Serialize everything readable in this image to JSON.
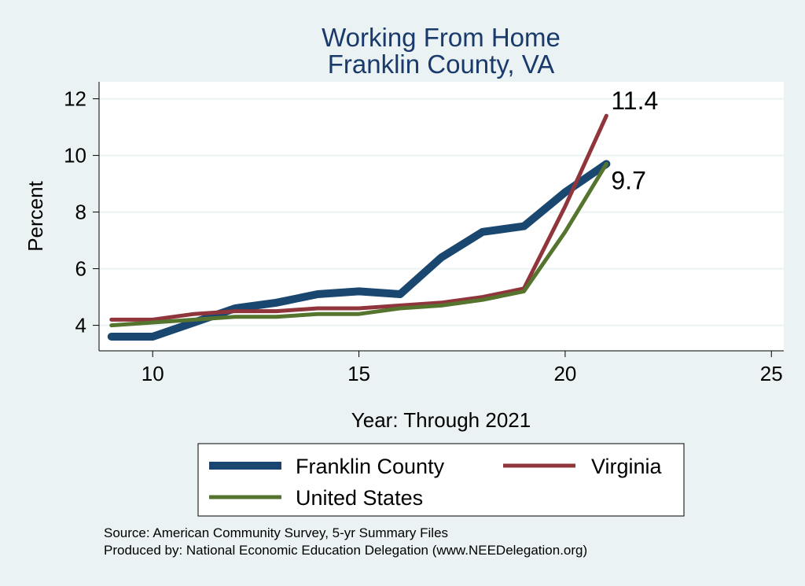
{
  "chart_data": {
    "type": "line",
    "title": [
      "Working From Home",
      "Franklin County, VA"
    ],
    "xlabel": "Year: Through 2021",
    "ylabel": "Percent",
    "xlim": [
      8.7,
      25.3
    ],
    "ylim": [
      3.1,
      12.6
    ],
    "xticks": [
      10,
      15,
      20,
      25
    ],
    "yticks": [
      4,
      6,
      8,
      10,
      12
    ],
    "grid": "horizontal",
    "legend_position": "bottom",
    "series": [
      {
        "name": "Franklin County",
        "color": "#1a476f",
        "x": [
          9,
          10,
          11,
          12,
          13,
          14,
          15,
          16,
          17,
          18,
          19,
          20,
          21
        ],
        "y": [
          3.6,
          3.6,
          4.1,
          4.6,
          4.8,
          5.1,
          5.2,
          5.1,
          6.4,
          7.3,
          7.5,
          8.7,
          9.7
        ]
      },
      {
        "name": "Virginia",
        "color": "#90353b",
        "x": [
          9,
          10,
          11,
          12,
          13,
          14,
          15,
          16,
          17,
          18,
          19,
          20,
          21
        ],
        "y": [
          4.2,
          4.2,
          4.4,
          4.5,
          4.5,
          4.6,
          4.6,
          4.7,
          4.8,
          5.0,
          5.3,
          8.2,
          11.4
        ]
      },
      {
        "name": "United States",
        "color": "#55752f",
        "x": [
          9,
          10,
          11,
          12,
          13,
          14,
          15,
          16,
          17,
          18,
          19,
          20,
          21
        ],
        "y": [
          4.0,
          4.1,
          4.2,
          4.3,
          4.3,
          4.4,
          4.4,
          4.6,
          4.7,
          4.9,
          5.2,
          7.3,
          9.7
        ]
      }
    ],
    "annotations": [
      {
        "text": "11.4",
        "x": 21,
        "y": 11.4
      },
      {
        "text": "9.7",
        "x": 21,
        "y": 9.7
      }
    ]
  },
  "footnotes": {
    "source": "Source: American Community Survey, 5-yr Summary Files",
    "produced_by": "Produced by: National Economic Education Delegation (www.NEEDelegation.org)"
  }
}
